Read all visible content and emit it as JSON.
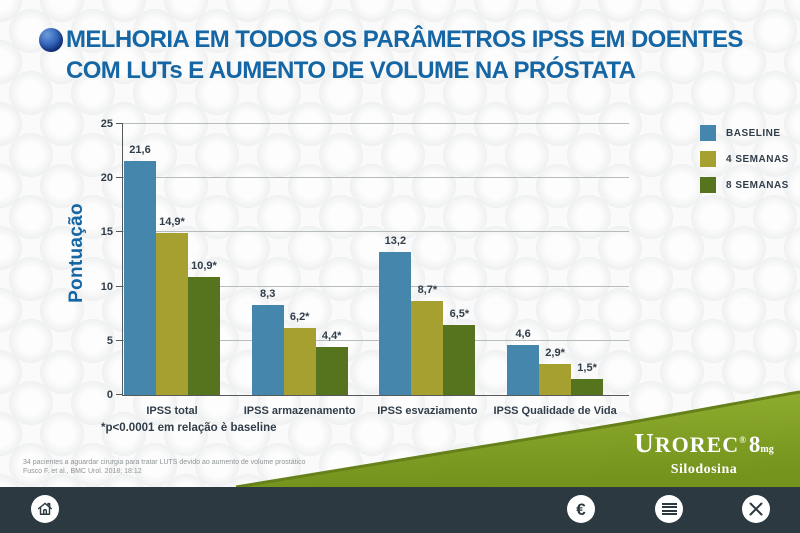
{
  "header": {
    "title_line1": "MELHORIA EM TODOS OS PARÂMETROS IPSS EM DOENTES",
    "title_line2": "COM LUTs E AUMENTO DE VOLUME NA PRÓSTATA"
  },
  "chart_data": {
    "type": "bar",
    "ylabel": "Pontuação",
    "ylim": [
      0,
      25
    ],
    "yticks": [
      0,
      5,
      10,
      15,
      20,
      25
    ],
    "grid": true,
    "legend_position": "top-right",
    "categories": [
      "IPSS total",
      "IPSS armazenamento",
      "IPSS esvaziamento",
      "IPSS Qualidade de Vida"
    ],
    "series": [
      {
        "name": "BASELINE",
        "color": "#4586ac",
        "values": [
          21.6,
          8.3,
          13.2,
          4.6
        ],
        "labels": [
          "21,6",
          "8,3",
          "13,2",
          "4,6"
        ]
      },
      {
        "name": "4 SEMANAS",
        "color": "#a5a02f",
        "values": [
          14.9,
          6.2,
          8.7,
          2.9
        ],
        "labels": [
          "14,9*",
          "6,2*",
          "8,7*",
          "2,9*"
        ]
      },
      {
        "name": "8 SEMANAS",
        "color": "#56741d",
        "values": [
          10.9,
          4.4,
          6.5,
          1.5
        ],
        "labels": [
          "10,9*",
          "4,4*",
          "6,5*",
          "1,5*"
        ]
      }
    ],
    "footnote": "*p<0.0001 em relação è baseline"
  },
  "reference": {
    "line1": "34 pacientes a aguardar cirurgia para tratar LUTS devido ao aumento de volume prostático",
    "line2": "Fusco F. et al., BMC Urol. 2018; 18:12"
  },
  "brand": {
    "name": "UROREC",
    "registered": "®",
    "dose": "8",
    "unit": "mg",
    "substance": "Silodosina"
  },
  "navbar": {
    "euro_glyph": "€",
    "icons": [
      "home-icon",
      "euro-icon",
      "menu-icon",
      "close-icon"
    ]
  },
  "colors": {
    "title_blue": "#1566a4",
    "text_dark": "#313e4a",
    "axis": "#55595c",
    "grid": "#b6bbbb",
    "navbar_bg": "#2c3940",
    "swoosh_green_light": "#93b232",
    "swoosh_green_dark": "#74931d",
    "swoosh_edge": "#66801a"
  }
}
